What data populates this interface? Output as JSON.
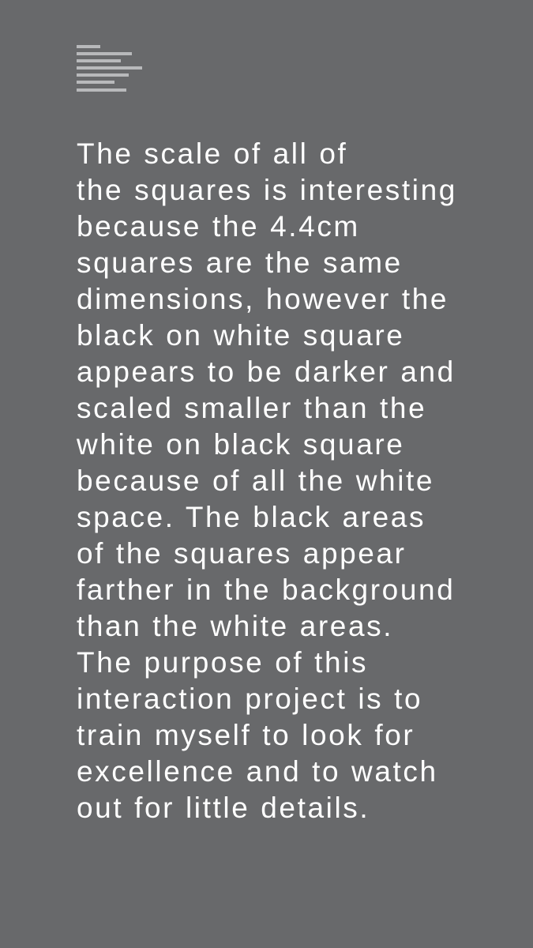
{
  "colors": {
    "background": "#68696b",
    "text": "#ffffff",
    "icon": "#b8b9bb"
  },
  "icon": "text-lines-menu-icon",
  "paragraph": {
    "lines": [
      "The scale of all of",
      "the squares is interesting",
      "because the 4.4cm",
      "squares are the same",
      "dimensions, however the",
      "black on white square",
      "appears to be darker and",
      "scaled smaller than the",
      "white on black square",
      "because of all the white",
      "space. The black areas",
      "of the squares appear",
      "farther in the background",
      "than the white areas.",
      "The purpose of this",
      "interaction project is to",
      "train myself to look for",
      "excellence and to watch",
      "out for little details."
    ]
  }
}
